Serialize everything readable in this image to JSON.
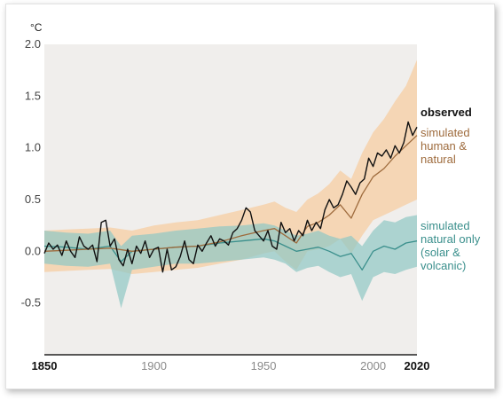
{
  "chart_data": {
    "type": "line",
    "y_unit": "°C",
    "xlim": [
      1850,
      2020
    ],
    "ylim": [
      -1.0,
      2.0
    ],
    "y_ticks": [
      "2.0",
      "1.5",
      "1.0",
      "0.5",
      "0.0",
      "-0.5"
    ],
    "y_tick_values": [
      2.0,
      1.5,
      1.0,
      0.5,
      0.0,
      -0.5
    ],
    "x_ticks": [
      "1850",
      "1900",
      "1950",
      "2000",
      "2020"
    ],
    "x_tick_values": [
      1850,
      1900,
      1950,
      2000,
      2020
    ],
    "grid": false,
    "legend_position": "right",
    "colors": {
      "plot_bg": "#f0eeec",
      "observed": "#111111",
      "human": "#9e6b3d",
      "human_band": "#f6cfa8",
      "natural": "#3a8f8c",
      "natural_band": "#8fc8c4"
    },
    "series": [
      {
        "name": "observed",
        "x": [
          1850,
          1852,
          1854,
          1856,
          1858,
          1860,
          1862,
          1864,
          1866,
          1868,
          1870,
          1872,
          1874,
          1876,
          1878,
          1880,
          1882,
          1884,
          1886,
          1888,
          1890,
          1892,
          1894,
          1896,
          1898,
          1900,
          1902,
          1904,
          1906,
          1908,
          1910,
          1912,
          1914,
          1916,
          1918,
          1920,
          1922,
          1924,
          1926,
          1928,
          1930,
          1932,
          1934,
          1936,
          1938,
          1940,
          1942,
          1944,
          1946,
          1948,
          1950,
          1952,
          1954,
          1956,
          1958,
          1960,
          1962,
          1964,
          1966,
          1968,
          1970,
          1972,
          1974,
          1976,
          1978,
          1980,
          1982,
          1984,
          1986,
          1988,
          1990,
          1992,
          1994,
          1996,
          1998,
          2000,
          2002,
          2004,
          2006,
          2008,
          2010,
          2012,
          2014,
          2016,
          2018,
          2020
        ],
        "values": [
          -0.02,
          0.08,
          0.02,
          0.06,
          -0.04,
          0.1,
          0.0,
          -0.06,
          0.14,
          0.05,
          0.02,
          0.06,
          -0.1,
          0.28,
          0.3,
          0.05,
          0.12,
          -0.08,
          -0.14,
          0.02,
          -0.12,
          0.05,
          -0.02,
          0.1,
          -0.06,
          0.02,
          0.04,
          -0.2,
          0.02,
          -0.18,
          -0.15,
          -0.05,
          0.1,
          -0.08,
          -0.12,
          0.06,
          0.0,
          0.08,
          0.15,
          0.05,
          0.12,
          0.1,
          0.06,
          0.18,
          0.22,
          0.3,
          0.42,
          0.38,
          0.2,
          0.15,
          0.1,
          0.2,
          0.05,
          0.02,
          0.28,
          0.18,
          0.22,
          0.1,
          0.2,
          0.15,
          0.3,
          0.2,
          0.28,
          0.22,
          0.4,
          0.5,
          0.42,
          0.45,
          0.55,
          0.68,
          0.62,
          0.55,
          0.66,
          0.7,
          0.9,
          0.82,
          0.95,
          0.92,
          0.98,
          0.9,
          1.02,
          0.95,
          1.05,
          1.25,
          1.12,
          1.2
        ]
      },
      {
        "name": "simulated human & natural",
        "x": [
          1850,
          1860,
          1870,
          1880,
          1890,
          1900,
          1910,
          1920,
          1930,
          1940,
          1950,
          1955,
          1960,
          1965,
          1970,
          1975,
          1980,
          1985,
          1990,
          1995,
          2000,
          2005,
          2010,
          2015,
          2020
        ],
        "values": [
          0.0,
          0.01,
          0.02,
          0.03,
          0.0,
          0.02,
          0.04,
          0.05,
          0.09,
          0.15,
          0.2,
          0.22,
          0.15,
          0.08,
          0.24,
          0.28,
          0.35,
          0.45,
          0.32,
          0.55,
          0.72,
          0.8,
          0.92,
          1.02,
          1.12
        ],
        "upper": [
          0.2,
          0.21,
          0.22,
          0.23,
          0.2,
          0.25,
          0.28,
          0.3,
          0.35,
          0.4,
          0.45,
          0.48,
          0.42,
          0.38,
          0.5,
          0.56,
          0.65,
          0.78,
          0.7,
          0.95,
          1.15,
          1.28,
          1.45,
          1.6,
          1.85
        ],
        "lower": [
          -0.2,
          -0.19,
          -0.18,
          -0.17,
          -0.22,
          -0.2,
          -0.18,
          -0.16,
          -0.12,
          -0.08,
          -0.02,
          0.0,
          -0.1,
          -0.18,
          0.0,
          0.02,
          0.05,
          0.12,
          -0.02,
          0.15,
          0.3,
          0.35,
          0.4,
          0.45,
          0.5
        ]
      },
      {
        "name": "simulated natural only (solar & volcanic)",
        "x": [
          1850,
          1860,
          1870,
          1880,
          1885,
          1890,
          1900,
          1910,
          1920,
          1930,
          1940,
          1950,
          1955,
          1960,
          1965,
          1970,
          1975,
          1980,
          1985,
          1990,
          1995,
          2000,
          2005,
          2010,
          2015,
          2020
        ],
        "values": [
          0.05,
          0.04,
          0.02,
          0.05,
          -0.1,
          0.0,
          0.02,
          0.04,
          0.05,
          0.08,
          0.1,
          0.12,
          0.1,
          0.05,
          0.0,
          0.02,
          0.04,
          0.0,
          -0.05,
          -0.02,
          -0.18,
          0.0,
          0.05,
          0.02,
          0.08,
          0.1
        ],
        "upper": [
          0.2,
          0.18,
          0.17,
          0.2,
          0.05,
          0.15,
          0.17,
          0.2,
          0.22,
          0.24,
          0.25,
          0.27,
          0.25,
          0.2,
          0.15,
          0.17,
          0.2,
          0.15,
          0.12,
          0.15,
          0.05,
          0.2,
          0.3,
          0.28,
          0.33,
          0.35
        ],
        "lower": [
          -0.12,
          -0.14,
          -0.15,
          -0.12,
          -0.55,
          -0.18,
          -0.15,
          -0.12,
          -0.12,
          -0.1,
          -0.08,
          -0.06,
          -0.08,
          -0.12,
          -0.2,
          -0.16,
          -0.14,
          -0.2,
          -0.25,
          -0.22,
          -0.48,
          -0.25,
          -0.2,
          -0.22,
          -0.18,
          -0.15
        ]
      }
    ],
    "legend": {
      "observed": "observed",
      "human": [
        "simulated",
        "human &",
        "natural"
      ],
      "natural": [
        "simulated",
        "natural only",
        "(solar &",
        "volcanic)"
      ]
    }
  }
}
